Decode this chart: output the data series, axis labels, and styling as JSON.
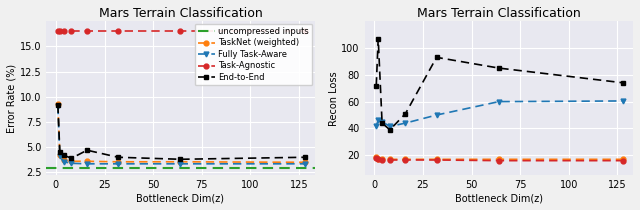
{
  "title": "Mars Terrain Classification",
  "left": {
    "xlabel": "Bottleneck Dim(z)",
    "ylabel": "Error Rate (%)",
    "xlim": [
      -5,
      133
    ],
    "ylim": [
      2.2,
      17.5
    ],
    "yticks": [
      2.5,
      5.0,
      7.5,
      10.0,
      12.5,
      15.0
    ],
    "x": [
      1,
      2,
      4,
      8,
      16,
      32,
      64,
      128
    ],
    "tasknet_weighted": [
      9.3,
      4.2,
      3.7,
      3.6,
      3.6,
      3.55,
      3.55,
      3.5
    ],
    "fully_task_aware": [
      9.1,
      4.1,
      3.55,
      3.4,
      3.35,
      3.35,
      3.35,
      3.35
    ],
    "task_agnostic": [
      16.5,
      16.5,
      16.5,
      16.5,
      16.5,
      16.5,
      16.5,
      16.5
    ],
    "end_to_end": [
      9.2,
      4.5,
      4.2,
      3.9,
      4.7,
      4.0,
      3.8,
      4.0
    ],
    "uncompressed": 2.95,
    "legend_labels": [
      "uncompressed inputs",
      "TaskNet (weighted)",
      "Fully Task-Aware",
      "Task-Agnostic",
      "End-to-End"
    ],
    "colors": {
      "uncompressed": "#2ca02c",
      "tasknet": "#ff7f0e",
      "fully": "#1f77b4",
      "agnostic": "#d62728",
      "end2end": "#000000"
    }
  },
  "right": {
    "xlabel": "Bottleneck Dim(z)",
    "ylabel": "Recon Loss",
    "xlim": [
      -5,
      133
    ],
    "ylim": [
      5,
      120
    ],
    "yticks": [
      20,
      40,
      60,
      80,
      100
    ],
    "x": [
      1,
      2,
      4,
      8,
      16,
      32,
      64,
      128
    ],
    "tasknet_weighted": [
      18.5,
      17.5,
      17.0,
      17.0,
      17.0,
      17.0,
      17.0,
      17.0
    ],
    "fully_task_aware": [
      42.0,
      46.0,
      45.0,
      41.5,
      44.0,
      50.0,
      60.0,
      60.5
    ],
    "task_agnostic": [
      18.0,
      17.0,
      16.5,
      16.5,
      16.5,
      16.5,
      16.0,
      16.0
    ],
    "end_to_end": [
      72.0,
      107.0,
      44.0,
      39.0,
      51.0,
      93.0,
      85.0,
      74.0
    ],
    "colors": {
      "tasknet": "#ff7f0e",
      "fully": "#1f77b4",
      "agnostic": "#d62728",
      "end2end": "#000000"
    }
  },
  "background_color": "#e8e8f0",
  "font_size": 7
}
